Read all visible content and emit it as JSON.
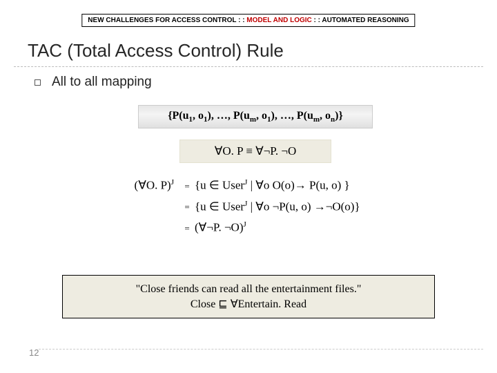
{
  "breadcrumb": {
    "part1": "NEW CHALLENGES FOR ACCESS CONTROL : : ",
    "part2_highlight": "MODEL AND LOGIC",
    "part3": " : : AUTOMATED REASONING"
  },
  "title": "TAC (Total Access Control) Rule",
  "bullet": "All to all mapping",
  "set_formula": "{P(u₁, o₁), …, P(uₘ, o₁), …, P(uₘ, oₙ)}",
  "identity": "∀O. P ≡ ∀¬P. ¬O",
  "defs": {
    "lhs": "(∀O. P)",
    "sup": "J",
    "rows": [
      "{u ∈ UserJ | ∀o O(o)→ P(u, o) }",
      "{u ∈ UserJ | ∀o ¬P(u, o) →¬O(o)}",
      "(∀¬P. ¬O)J"
    ]
  },
  "example": {
    "line1": "\"Close friends can read all the entertainment files.\"",
    "line2": "Close ⊑ ∀Entertain. Read"
  },
  "page_number": "12",
  "colors": {
    "highlight": "#c00000",
    "tan_bg": "#eeece1",
    "grey_grad_top": "#e6e6e6"
  }
}
